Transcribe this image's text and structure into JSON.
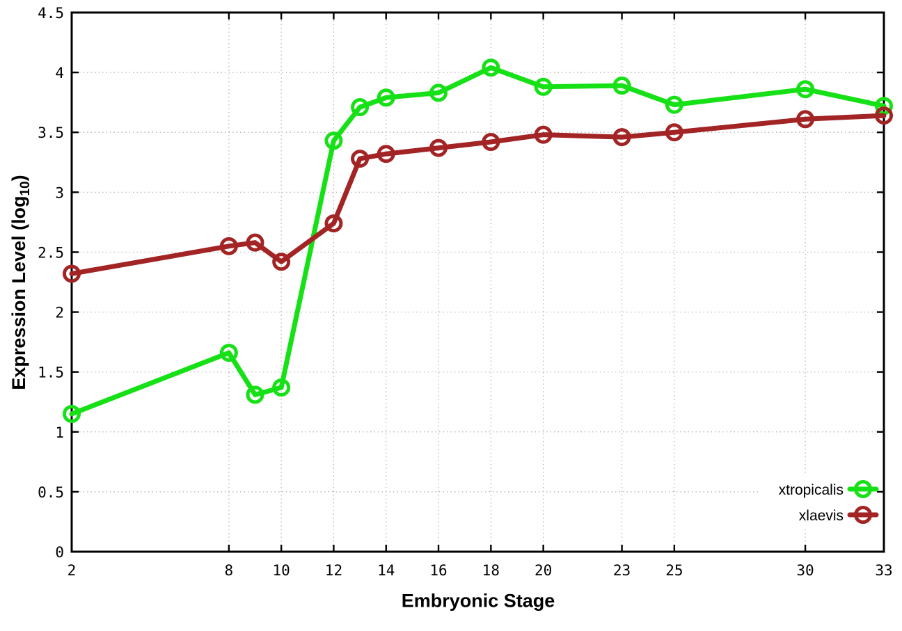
{
  "chart_data": {
    "type": "line",
    "title": "",
    "xlabel": "Embryonic Stage",
    "ylabel": "Expression Level (log10)",
    "ylabel_parts": {
      "prefix": "Expression Level (log",
      "sub": "10",
      "suffix": ")"
    },
    "xlim": [
      2,
      33
    ],
    "ylim": [
      0,
      4.5
    ],
    "x_ticks": [
      2,
      8,
      10,
      12,
      14,
      16,
      18,
      20,
      23,
      25,
      30,
      33
    ],
    "x_tick_labels": [
      "2",
      "8",
      "10",
      "12",
      "14",
      "16",
      "18",
      "20",
      "23",
      "25",
      "30",
      "33"
    ],
    "y_ticks": [
      0,
      0.5,
      1,
      1.5,
      2,
      2.5,
      3,
      3.5,
      4,
      4.5
    ],
    "y_tick_labels": [
      "0",
      "0.5",
      "1",
      "1.5",
      "2",
      "2.5",
      "3",
      "3.5",
      "4",
      "4.5"
    ],
    "grid": true,
    "legend_position": "inside-bottom-right",
    "x": [
      2,
      8,
      9,
      10,
      12,
      13,
      14,
      16,
      18,
      20,
      23,
      25,
      30,
      33
    ],
    "series": [
      {
        "name": "xtropicalis",
        "color": "#16e016",
        "marker": "open-circle",
        "values": [
          1.15,
          1.66,
          1.31,
          1.37,
          3.43,
          3.71,
          3.79,
          3.83,
          4.04,
          3.88,
          3.89,
          3.73,
          3.86,
          3.72
        ]
      },
      {
        "name": "xlaevis",
        "color": "#a32424",
        "marker": "open-circle",
        "values": [
          2.32,
          2.55,
          2.58,
          2.42,
          2.74,
          3.28,
          3.32,
          3.37,
          3.42,
          3.48,
          3.46,
          3.5,
          3.61,
          3.64
        ]
      }
    ],
    "colors": {
      "background": "#ffffff",
      "axis": "#000000",
      "grid": "#b0b0b0"
    }
  }
}
